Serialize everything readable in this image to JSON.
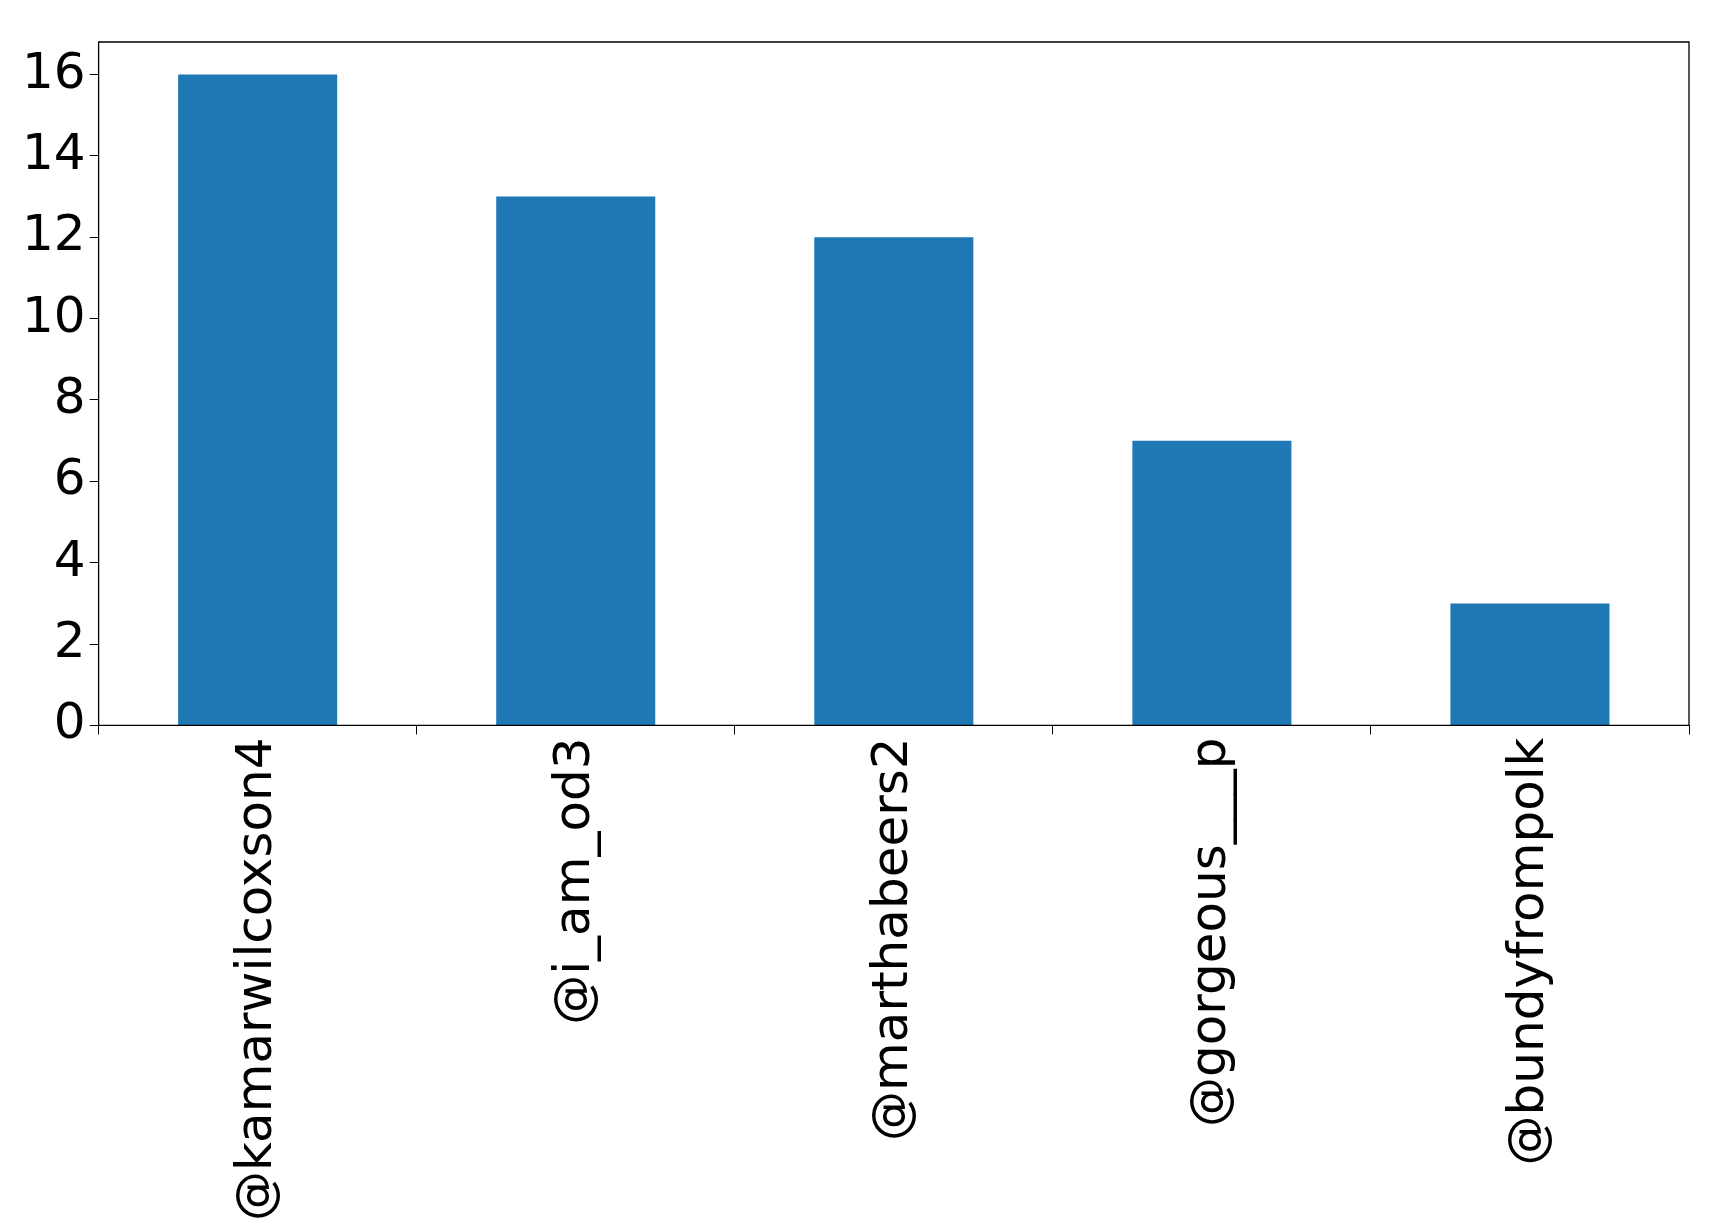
{
  "chart_data": {
    "type": "bar",
    "categories": [
      "@kamarwilcoxson4",
      "@i_am_od3",
      "@marthabeers2",
      "@gorgeous___p",
      "@bundyfrompolk"
    ],
    "values": [
      16,
      13,
      12,
      7,
      3
    ],
    "color": "#1f77b4",
    "ylim": [
      0,
      16.8
    ],
    "yticks": [
      0,
      2,
      4,
      6,
      8,
      10,
      12,
      14,
      16
    ],
    "grid": false,
    "legend": false
  }
}
